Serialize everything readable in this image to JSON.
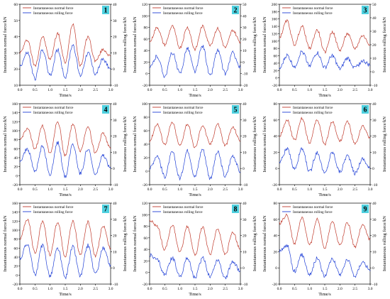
{
  "figure": {
    "legend": {
      "normal": "Instantaneous normal force",
      "rolling": "Instantaneous rolling force"
    },
    "xlabel": "Time/s",
    "ylabel_left": "Instantaneous normal force/kN",
    "ylabel_right": "Instantaneous rolling force/kN",
    "colors": {
      "normal": "#c0392b",
      "rolling": "#1f3fd6",
      "badge": "#4fd1e0",
      "axis": "#000000"
    }
  },
  "chart_data": [
    {
      "type": "line",
      "panel": "1",
      "x": [
        0.0,
        0.25,
        0.5,
        0.75,
        1.0,
        1.25,
        1.5,
        1.75,
        2.0,
        2.25,
        2.5,
        2.75,
        3.0
      ],
      "xlim": [
        0,
        3.0
      ],
      "xticks": [
        "0.0",
        "0.5",
        "1.0",
        "1.5",
        "2.0",
        "2.5",
        "3.0"
      ],
      "ylim_left": [
        10,
        60
      ],
      "yticks_left": [
        "10",
        "20",
        "30",
        "40",
        "50",
        "60"
      ],
      "ylim_right": [
        -10,
        40
      ],
      "yticks_right": [
        "-10",
        "0",
        "10",
        "20",
        "30",
        "40"
      ],
      "series": [
        {
          "name": "Instantaneous normal force",
          "axis": "left",
          "values": [
            30,
            38,
            22,
            40,
            26,
            42,
            24,
            48,
            22,
            40,
            25,
            32,
            28
          ]
        },
        {
          "name": "Instantaneous rolling force",
          "axis": "right",
          "values": [
            2,
            10,
            -6,
            12,
            -4,
            12,
            -5,
            15,
            -4,
            10,
            -3,
            6,
            0
          ]
        }
      ]
    },
    {
      "type": "line",
      "panel": "2",
      "x": [
        0.0,
        0.25,
        0.5,
        0.75,
        1.0,
        1.25,
        1.5,
        1.75,
        2.0,
        2.25,
        2.5,
        2.75,
        3.0
      ],
      "xlim": [
        0,
        3.0
      ],
      "xticks": [
        "0.0",
        "0.5",
        "1.0",
        "1.5",
        "2.0",
        "2.5",
        "3.0"
      ],
      "ylim_left": [
        -20,
        120
      ],
      "yticks_left": [
        "-20",
        "0",
        "20",
        "40",
        "60",
        "80",
        "100",
        "120"
      ],
      "ylim_right": [
        -20,
        50
      ],
      "yticks_right": [
        "-20",
        "-10",
        "0",
        "10",
        "20",
        "30",
        "40",
        "50"
      ],
      "series": [
        {
          "name": "Instantaneous normal force",
          "axis": "left",
          "values": [
            55,
            80,
            50,
            82,
            45,
            80,
            42,
            82,
            50,
            78,
            45,
            75,
            55
          ]
        },
        {
          "name": "Instantaneous rolling force",
          "axis": "right",
          "values": [
            -5,
            5,
            -12,
            8,
            -10,
            12,
            -8,
            14,
            -12,
            10,
            -10,
            8,
            -5
          ]
        }
      ]
    },
    {
      "type": "line",
      "panel": "3",
      "x": [
        0.0,
        0.25,
        0.5,
        0.75,
        1.0,
        1.25,
        1.5,
        1.75,
        2.0,
        2.25,
        2.5,
        2.75,
        3.0
      ],
      "xlim": [
        0,
        3.0
      ],
      "xticks": [
        "0.0",
        "0.5",
        "1.0",
        "1.5",
        "2.0",
        "2.5",
        "3.0"
      ],
      "ylim_left": [
        -20,
        200
      ],
      "yticks_left": [
        "-20",
        "0",
        "20",
        "40",
        "60",
        "80",
        "100",
        "120",
        "140",
        "160",
        "180",
        "200"
      ],
      "ylim_right": [
        -10,
        50
      ],
      "yticks_right": [
        "-10",
        "0",
        "10",
        "20",
        "30",
        "40",
        "50"
      ],
      "series": [
        {
          "name": "Instantaneous normal force",
          "axis": "left",
          "values": [
            110,
            155,
            90,
            140,
            80,
            130,
            70,
            125,
            75,
            120,
            80,
            115,
            90
          ]
        },
        {
          "name": "Instantaneous rolling force",
          "axis": "right",
          "values": [
            2,
            12,
            4,
            15,
            5,
            14,
            3,
            12,
            2,
            10,
            3,
            8,
            5
          ]
        }
      ]
    },
    {
      "type": "line",
      "panel": "4",
      "x": [
        0.0,
        0.25,
        0.5,
        0.75,
        1.0,
        1.25,
        1.5,
        1.75,
        2.0,
        2.25,
        2.5,
        2.75,
        3.0
      ],
      "xlim": [
        0,
        3.0
      ],
      "xticks": [
        "0.0",
        "0.5",
        "1.0",
        "1.5",
        "2.0",
        "2.5",
        "3.0"
      ],
      "ylim_left": [
        -20,
        160
      ],
      "yticks_left": [
        "-20",
        "0",
        "20",
        "40",
        "60",
        "80",
        "100",
        "120",
        "140",
        "160"
      ],
      "ylim_right": [
        -10,
        40
      ],
      "yticks_right": [
        "-10",
        "0",
        "10",
        "20",
        "30",
        "40"
      ],
      "series": [
        {
          "name": "Instantaneous normal force",
          "axis": "left",
          "values": [
            80,
            105,
            60,
            110,
            50,
            120,
            45,
            115,
            55,
            110,
            50,
            95,
            60
          ]
        },
        {
          "name": "Instantaneous rolling force",
          "axis": "right",
          "values": [
            5,
            12,
            -2,
            14,
            -4,
            16,
            -5,
            15,
            -3,
            12,
            -4,
            8,
            0
          ]
        }
      ]
    },
    {
      "type": "line",
      "panel": "5",
      "x": [
        0.0,
        0.25,
        0.5,
        0.75,
        1.0,
        1.25,
        1.5,
        1.75,
        2.0,
        2.25,
        2.5,
        2.75,
        3.0
      ],
      "xlim": [
        0,
        3.0
      ],
      "xticks": [
        "0.0",
        "0.5",
        "1.0",
        "1.5",
        "2.0",
        "2.5",
        "3.0"
      ],
      "ylim_left": [
        -20,
        100
      ],
      "yticks_left": [
        "-20",
        "0",
        "20",
        "40",
        "60",
        "80",
        "100"
      ],
      "ylim_right": [
        -10,
        40
      ],
      "yticks_right": [
        "-10",
        "0",
        "10",
        "20",
        "30",
        "40"
      ],
      "series": [
        {
          "name": "Instantaneous normal force",
          "axis": "left",
          "values": [
            45,
            70,
            40,
            72,
            38,
            70,
            35,
            68,
            40,
            70,
            38,
            65,
            45
          ]
        },
        {
          "name": "Instantaneous rolling force",
          "axis": "right",
          "values": [
            0,
            8,
            -5,
            10,
            -6,
            11,
            -5,
            12,
            -6,
            10,
            -5,
            8,
            -2
          ]
        }
      ]
    },
    {
      "type": "line",
      "panel": "6",
      "x": [
        0.0,
        0.25,
        0.5,
        0.75,
        1.0,
        1.25,
        1.5,
        1.75,
        2.0,
        2.25,
        2.5,
        2.75,
        3.0
      ],
      "xlim": [
        0,
        3.0
      ],
      "xticks": [
        "0.0",
        "0.5",
        "1.0",
        "1.5",
        "2.0",
        "2.5",
        "3.0"
      ],
      "ylim_left": [
        -20,
        80
      ],
      "yticks_left": [
        "-20",
        "0",
        "20",
        "40",
        "60",
        "80"
      ],
      "ylim_right": [
        -10,
        40
      ],
      "yticks_right": [
        "-10",
        "0",
        "10",
        "20",
        "30",
        "40"
      ],
      "series": [
        {
          "name": "Instantaneous normal force",
          "axis": "left",
          "values": [
            40,
            60,
            35,
            62,
            32,
            60,
            30,
            58,
            34,
            58,
            30,
            52,
            38
          ]
        },
        {
          "name": "Instantaneous rolling force",
          "axis": "right",
          "values": [
            4,
            12,
            0,
            12,
            -2,
            10,
            -3,
            10,
            -2,
            8,
            -3,
            6,
            0
          ]
        }
      ]
    },
    {
      "type": "line",
      "panel": "7",
      "x": [
        0.0,
        0.25,
        0.5,
        0.75,
        1.0,
        1.25,
        1.5,
        1.75,
        2.0,
        2.25,
        2.5,
        2.75,
        3.0
      ],
      "xlim": [
        0,
        3.0
      ],
      "xticks": [
        "0.0",
        "0.5",
        "1.0",
        "1.5",
        "2.0",
        "2.5",
        "3.0"
      ],
      "ylim_left": [
        -20,
        160
      ],
      "yticks_left": [
        "-20",
        "0",
        "20",
        "40",
        "60",
        "80",
        "100",
        "120",
        "140",
        "160"
      ],
      "ylim_right": [
        -10,
        40
      ],
      "yticks_right": [
        "-10",
        "0",
        "10",
        "20",
        "30",
        "40"
      ],
      "series": [
        {
          "name": "Instantaneous normal force",
          "axis": "left",
          "values": [
            80,
            125,
            50,
            120,
            45,
            118,
            40,
            120,
            45,
            118,
            42,
            110,
            60
          ]
        },
        {
          "name": "Instantaneous rolling force",
          "axis": "right",
          "values": [
            6,
            15,
            -4,
            14,
            -5,
            12,
            -6,
            13,
            -5,
            14,
            -4,
            12,
            2
          ]
        }
      ]
    },
    {
      "type": "line",
      "panel": "8",
      "x": [
        0.0,
        0.25,
        0.5,
        0.75,
        1.0,
        1.25,
        1.5,
        1.75,
        2.0,
        2.25,
        2.5,
        2.75,
        3.0
      ],
      "xlim": [
        0,
        3.0
      ],
      "xticks": [
        "0.0",
        "0.5",
        "1.0",
        "1.5",
        "2.0",
        "2.5",
        "3.0"
      ],
      "ylim_left": [
        -20,
        120
      ],
      "yticks_left": [
        "-20",
        "0",
        "20",
        "40",
        "60",
        "80",
        "100",
        "120"
      ],
      "ylim_right": [
        -10,
        40
      ],
      "yticks_right": [
        "-10",
        "0",
        "10",
        "20",
        "30",
        "40"
      ],
      "series": [
        {
          "name": "Instantaneous normal force",
          "axis": "left",
          "values": [
            90,
            80,
            40,
            82,
            35,
            80,
            30,
            78,
            32,
            76,
            30,
            70,
            40
          ]
        },
        {
          "name": "Instantaneous rolling force",
          "axis": "right",
          "values": [
            8,
            5,
            -4,
            6,
            -5,
            6,
            -6,
            6,
            -5,
            5,
            -6,
            4,
            -2
          ]
        }
      ]
    },
    {
      "type": "line",
      "panel": "9",
      "x": [
        0.0,
        0.25,
        0.5,
        0.75,
        1.0,
        1.25,
        1.5,
        1.75,
        2.0,
        2.25,
        2.5,
        2.75,
        3.0
      ],
      "xlim": [
        0,
        3.0
      ],
      "xticks": [
        "0.0",
        "0.5",
        "1.0",
        "1.5",
        "2.0",
        "2.5",
        "3.0"
      ],
      "ylim_left": [
        -20,
        80
      ],
      "yticks_left": [
        "-20",
        "0",
        "20",
        "40",
        "60",
        "80"
      ],
      "ylim_right": [
        -10,
        40
      ],
      "yticks_right": [
        "-10",
        "0",
        "10",
        "20",
        "30",
        "40"
      ],
      "series": [
        {
          "name": "Instantaneous normal force",
          "axis": "left",
          "values": [
            55,
            65,
            30,
            62,
            28,
            60,
            25,
            58,
            28,
            56,
            26,
            54,
            35
          ]
        },
        {
          "name": "Instantaneous rolling force",
          "axis": "right",
          "values": [
            10,
            14,
            -2,
            8,
            -4,
            6,
            -5,
            6,
            -4,
            5,
            -5,
            4,
            -2
          ]
        }
      ]
    }
  ]
}
